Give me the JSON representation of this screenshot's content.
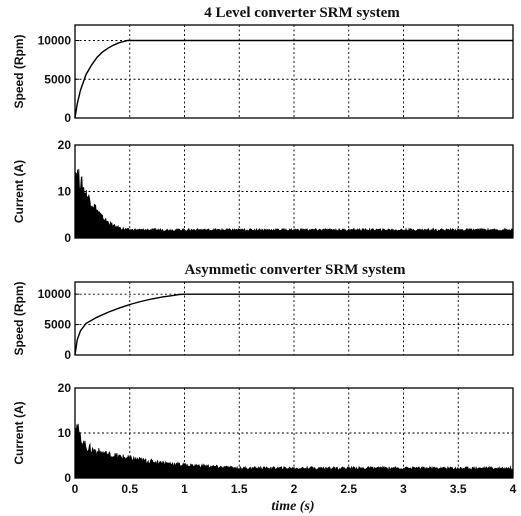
{
  "titles": {
    "top": "4 Level converter SRM system",
    "bottom": "Asymmetic converter SRM system"
  },
  "xlabel": "time (s)",
  "chart_data": [
    {
      "type": "line",
      "title": "4 Level converter SRM system",
      "ylabel": "Speed (Rpm)",
      "xlim": [
        0,
        4
      ],
      "ylim": [
        0,
        12000
      ],
      "yticks": [
        0,
        5000,
        10000
      ],
      "grid": true,
      "series": [
        {
          "x": [
            0,
            0.02,
            0.05,
            0.1,
            0.15,
            0.2,
            0.25,
            0.3,
            0.35,
            0.4,
            0.45,
            0.48,
            0.5,
            4
          ],
          "values": [
            0,
            1800,
            3600,
            5600,
            6800,
            7800,
            8500,
            9000,
            9400,
            9700,
            9900,
            10000,
            10000,
            10000
          ]
        }
      ]
    },
    {
      "type": "area",
      "ylabel": "Current (A)",
      "xlim": [
        0,
        4
      ],
      "ylim": [
        0,
        20
      ],
      "yticks": [
        0,
        10,
        20
      ],
      "grid": true,
      "series": [
        {
          "x": [
            0,
            0.02,
            0.05,
            0.1,
            0.15,
            0.2,
            0.25,
            0.3,
            0.35,
            0.4,
            0.45,
            0.5,
            1,
            2,
            3,
            4
          ],
          "values": [
            17,
            16,
            14,
            11,
            9,
            7,
            5,
            4,
            3,
            2.5,
            2.2,
            2,
            2,
            2,
            2,
            2
          ]
        }
      ]
    },
    {
      "type": "line",
      "title": "Asymmetic converter SRM system",
      "ylabel": "Speed (Rpm)",
      "xlim": [
        0,
        4
      ],
      "ylim": [
        0,
        12000
      ],
      "yticks": [
        0,
        5000,
        10000
      ],
      "grid": true,
      "series": [
        {
          "x": [
            0,
            0.02,
            0.05,
            0.1,
            0.2,
            0.3,
            0.4,
            0.5,
            0.6,
            0.7,
            0.8,
            0.9,
            0.95,
            1.0,
            4
          ],
          "values": [
            0,
            2500,
            4000,
            5200,
            6200,
            7000,
            7700,
            8300,
            8800,
            9200,
            9550,
            9800,
            9950,
            10000,
            10000
          ]
        }
      ]
    },
    {
      "type": "area",
      "ylabel": "Current (A)",
      "xlabel": "time (s)",
      "xlim": [
        0,
        4
      ],
      "ylim": [
        0,
        20
      ],
      "xticks": [
        0,
        0.5,
        1,
        1.5,
        2,
        2.5,
        3,
        3.5,
        4
      ],
      "yticks": [
        0,
        10,
        20
      ],
      "grid": true,
      "series": [
        {
          "x": [
            0,
            0.02,
            0.05,
            0.1,
            0.2,
            0.3,
            0.4,
            0.5,
            0.6,
            0.7,
            0.8,
            0.9,
            1.0,
            1.5,
            2,
            3,
            4
          ],
          "values": [
            15,
            13,
            10,
            8,
            6.8,
            6,
            5.5,
            5,
            4.6,
            4.2,
            3.9,
            3.6,
            3.3,
            2.5,
            2.5,
            2.5,
            2.5
          ]
        }
      ]
    }
  ]
}
